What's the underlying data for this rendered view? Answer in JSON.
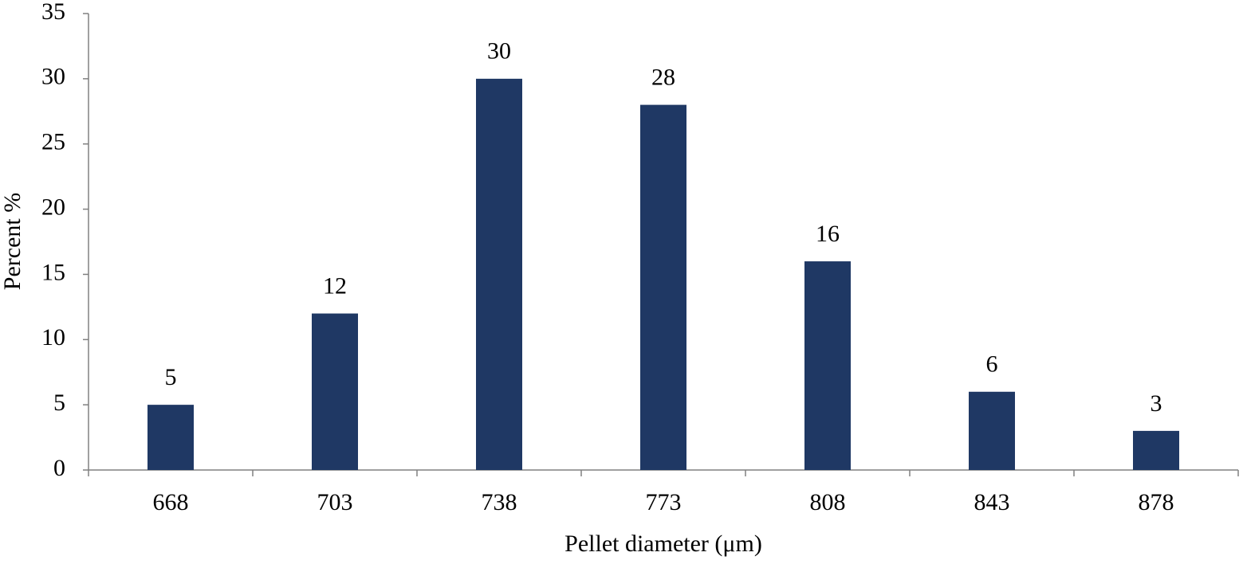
{
  "chart_data": {
    "type": "bar",
    "x_label": "Pellet diameter (μm)",
    "y_label": "Percent %",
    "categories": [
      "668",
      "703",
      "738",
      "773",
      "808",
      "843",
      "878"
    ],
    "values": [
      5,
      12,
      30,
      28,
      16,
      6,
      3
    ],
    "color": "#1f3864",
    "ylim": [
      0,
      35
    ],
    "yticks": [
      0,
      5,
      10,
      15,
      20,
      25,
      30,
      35
    ],
    "grid": false,
    "data_labels": true
  }
}
